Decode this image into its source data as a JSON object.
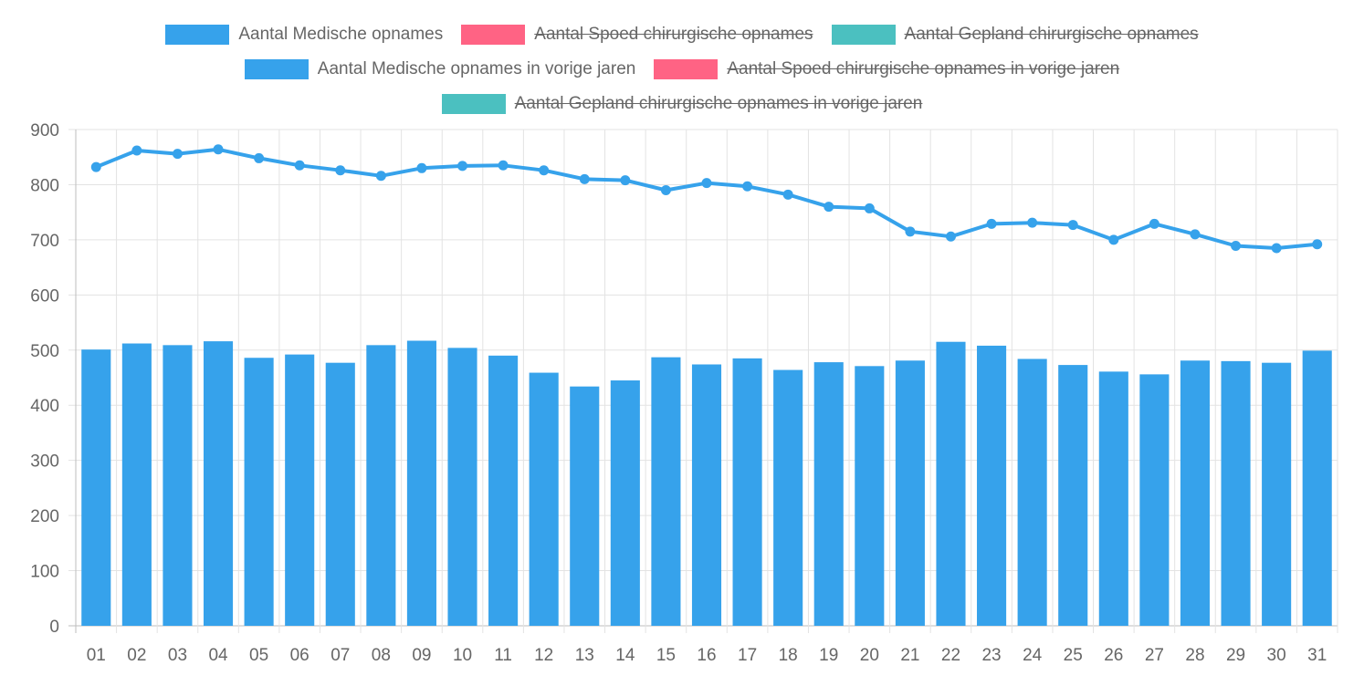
{
  "legend": [
    {
      "label": "Aantal Medische opnames",
      "color": "#36a2eb",
      "hidden": false
    },
    {
      "label": "Aantal Spoed chirurgische opnames",
      "color": "#ff6384",
      "hidden": true
    },
    {
      "label": "Aantal Gepland chirurgische opnames",
      "color": "#4bc0c0",
      "hidden": true
    },
    {
      "label": "Aantal Medische opnames in vorige jaren",
      "color": "#36a2eb",
      "hidden": false
    },
    {
      "label": "Aantal Spoed chirurgische opnames in vorige jaren",
      "color": "#ff6384",
      "hidden": true
    },
    {
      "label": "Aantal Gepland chirurgische opnames in vorige jaren",
      "color": "#4bc0c0",
      "hidden": true
    }
  ],
  "chart_data": {
    "type": "bar",
    "categories": [
      "01",
      "02",
      "03",
      "04",
      "05",
      "06",
      "07",
      "08",
      "09",
      "10",
      "11",
      "12",
      "13",
      "14",
      "15",
      "16",
      "17",
      "18",
      "19",
      "20",
      "21",
      "22",
      "23",
      "24",
      "25",
      "26",
      "27",
      "28",
      "29",
      "30",
      "31"
    ],
    "series": [
      {
        "name": "Aantal Medische opnames",
        "type": "bar",
        "color": "#36a2eb",
        "values": [
          501,
          512,
          509,
          516,
          486,
          492,
          477,
          509,
          517,
          504,
          490,
          459,
          434,
          445,
          487,
          474,
          485,
          464,
          478,
          471,
          481,
          515,
          508,
          484,
          473,
          461,
          456,
          481,
          480,
          477,
          499
        ]
      },
      {
        "name": "Aantal Medische opnames in vorige jaren",
        "type": "line",
        "color": "#36a2eb",
        "values": [
          832,
          862,
          856,
          864,
          848,
          835,
          826,
          816,
          830,
          834,
          835,
          826,
          810,
          808,
          790,
          803,
          797,
          782,
          760,
          757,
          715,
          706,
          729,
          731,
          727,
          700,
          729,
          710,
          689,
          685,
          692
        ]
      }
    ],
    "ylim": [
      0,
      900
    ],
    "yticks": [
      "0",
      "100",
      "200",
      "300",
      "400",
      "500",
      "600",
      "700",
      "800",
      "900"
    ],
    "grid": true,
    "legend_position": "top"
  }
}
